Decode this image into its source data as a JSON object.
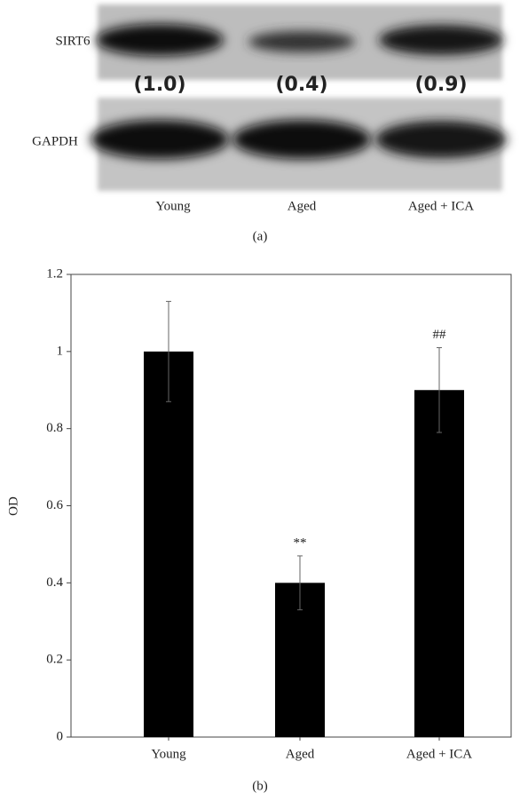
{
  "blot": {
    "rows": [
      "SIRT6",
      "GAPDH"
    ],
    "ratios": [
      "(1.0)",
      "(0.4)",
      "(0.9)"
    ],
    "lanes": [
      "Young",
      "Aged",
      "Aged + ICA"
    ],
    "caption": "(a)"
  },
  "chart_data": {
    "type": "bar",
    "categories": [
      "Young",
      "Aged",
      "Aged + ICA"
    ],
    "values": [
      1.0,
      0.4,
      0.9
    ],
    "errors": [
      0.13,
      0.07,
      0.11
    ],
    "value_annotations": [
      null,
      "**",
      "##"
    ],
    "color": "#000000",
    "y_label": "OD",
    "ylim": [
      0,
      1.2
    ],
    "yticks": [
      0,
      0.2,
      0.4,
      0.6,
      0.8,
      1,
      1.2
    ],
    "caption": "(b)"
  }
}
